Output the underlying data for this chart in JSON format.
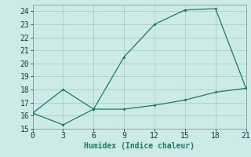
{
  "upper_x": [
    0,
    3,
    6,
    9,
    12,
    15,
    18,
    21
  ],
  "upper_y": [
    16.2,
    18.0,
    16.5,
    20.5,
    23.0,
    24.1,
    24.2,
    18.1
  ],
  "lower_x": [
    0,
    3,
    6,
    9,
    12,
    15,
    18,
    21
  ],
  "lower_y": [
    16.2,
    15.3,
    16.5,
    16.5,
    16.8,
    17.2,
    17.8,
    18.1
  ],
  "line_color": "#1a7a6a",
  "bg_color": "#cceae7",
  "grid_color": "#aad4d0",
  "xlabel": "Humidex (Indice chaleur)",
  "xlim": [
    0,
    21
  ],
  "ylim": [
    15,
    24.5
  ],
  "xticks": [
    0,
    3,
    6,
    9,
    12,
    15,
    18,
    21
  ],
  "yticks": [
    15,
    16,
    17,
    18,
    19,
    20,
    21,
    22,
    23,
    24
  ],
  "label_fontsize": 7,
  "tick_fontsize": 7
}
